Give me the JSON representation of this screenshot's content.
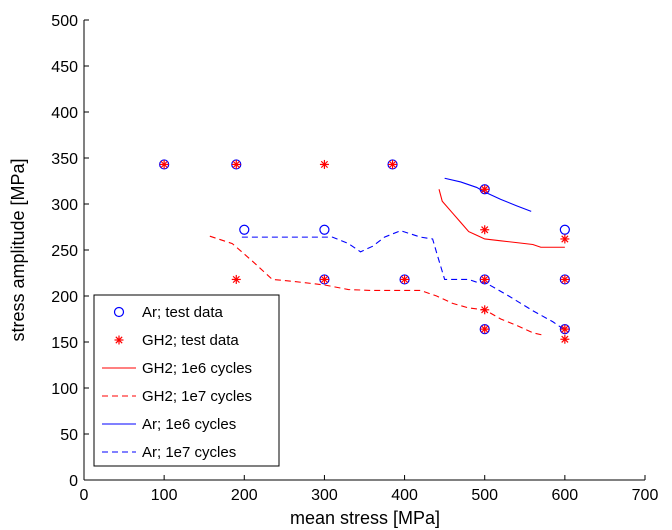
{
  "chart_data": {
    "type": "scatter",
    "xlabel": "mean stress [MPa]",
    "ylabel": "stress amplitude [MPa]",
    "xlim": [
      0,
      700
    ],
    "ylim": [
      0,
      500
    ],
    "xticks": [
      "0",
      "100",
      "200",
      "300",
      "400",
      "500",
      "600",
      "700"
    ],
    "yticks": [
      "0",
      "50",
      "100",
      "150",
      "200",
      "250",
      "300",
      "350",
      "400",
      "450",
      "500"
    ],
    "grid": false,
    "legend_position": "bottom-left",
    "colors": {
      "red": "#ff0000",
      "blue": "#0000ff"
    },
    "series": [
      {
        "name": "Ar; test data",
        "kind": "marker-circle",
        "color": "#0000ff",
        "points": [
          [
            100,
            343
          ],
          [
            190,
            343
          ],
          [
            385,
            343
          ],
          [
            200,
            272
          ],
          [
            300,
            272
          ],
          [
            300,
            218
          ],
          [
            400,
            218
          ],
          [
            500,
            316
          ],
          [
            500,
            218
          ],
          [
            500,
            164
          ],
          [
            600,
            272
          ],
          [
            600,
            218
          ],
          [
            600,
            164
          ]
        ]
      },
      {
        "name": "GH2; test data",
        "kind": "marker-star",
        "color": "#ff0000",
        "points": [
          [
            100,
            343
          ],
          [
            190,
            343
          ],
          [
            300,
            343
          ],
          [
            385,
            343
          ],
          [
            190,
            218
          ],
          [
            300,
            218
          ],
          [
            400,
            218
          ],
          [
            500,
            316
          ],
          [
            500,
            272
          ],
          [
            500,
            218
          ],
          [
            500,
            185
          ],
          [
            500,
            164
          ],
          [
            600,
            262
          ],
          [
            600,
            218
          ],
          [
            600,
            164
          ],
          [
            600,
            153
          ]
        ]
      },
      {
        "name": "GH2; 1e6 cycles",
        "kind": "line-solid",
        "color": "#ff0000",
        "points": [
          [
            443,
            316
          ],
          [
            447,
            303
          ],
          [
            460,
            290
          ],
          [
            470,
            280
          ],
          [
            480,
            270
          ],
          [
            490,
            266
          ],
          [
            500,
            262
          ],
          [
            520,
            260
          ],
          [
            540,
            258
          ],
          [
            560,
            256
          ],
          [
            570,
            253
          ],
          [
            600,
            253
          ]
        ]
      },
      {
        "name": "GH2; 1e7 cycles",
        "kind": "line-dashed",
        "color": "#ff0000",
        "points": [
          [
            157,
            265
          ],
          [
            185,
            257
          ],
          [
            210,
            238
          ],
          [
            235,
            218
          ],
          [
            260,
            216
          ],
          [
            300,
            212
          ],
          [
            330,
            207
          ],
          [
            360,
            206
          ],
          [
            380,
            206
          ],
          [
            420,
            206
          ],
          [
            440,
            200
          ],
          [
            460,
            192
          ],
          [
            480,
            187
          ],
          [
            500,
            185
          ],
          [
            520,
            175
          ],
          [
            540,
            168
          ],
          [
            560,
            160
          ],
          [
            575,
            157
          ]
        ]
      },
      {
        "name": "Ar; 1e6 cycles",
        "kind": "line-solid",
        "color": "#0000ff",
        "points": [
          [
            450,
            328
          ],
          [
            470,
            324
          ],
          [
            490,
            318
          ],
          [
            500,
            313
          ],
          [
            520,
            305
          ],
          [
            540,
            298
          ],
          [
            558,
            292
          ]
        ]
      },
      {
        "name": "Ar; 1e7 cycles",
        "kind": "line-dashed",
        "color": "#0000ff",
        "points": [
          [
            197,
            264
          ],
          [
            240,
            264
          ],
          [
            310,
            264
          ],
          [
            330,
            257
          ],
          [
            345,
            248
          ],
          [
            360,
            254
          ],
          [
            375,
            264
          ],
          [
            395,
            271
          ],
          [
            420,
            264
          ],
          [
            435,
            262
          ],
          [
            440,
            247
          ],
          [
            450,
            218
          ],
          [
            480,
            218
          ],
          [
            490,
            215
          ],
          [
            500,
            215
          ],
          [
            530,
            200
          ],
          [
            560,
            184
          ],
          [
            585,
            172
          ],
          [
            600,
            163
          ]
        ]
      }
    ]
  }
}
